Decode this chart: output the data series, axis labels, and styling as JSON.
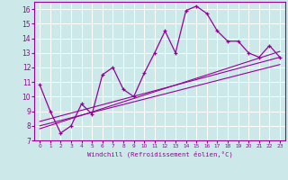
{
  "xlabel": "Windchill (Refroidissement éolien,°C)",
  "bg_color": "#cce8e8",
  "grid_color": "#ffffff",
  "line_color": "#990099",
  "main_x": [
    0,
    1,
    2,
    3,
    4,
    5,
    6,
    7,
    8,
    9,
    10,
    11,
    12,
    13,
    14,
    15,
    16,
    17,
    18,
    19,
    20,
    21,
    22,
    23
  ],
  "main_y": [
    10.8,
    9.0,
    7.5,
    8.0,
    9.5,
    8.8,
    11.5,
    12.0,
    10.5,
    10.0,
    11.6,
    13.0,
    14.5,
    13.0,
    15.9,
    16.2,
    15.7,
    14.5,
    13.8,
    13.8,
    13.0,
    12.7,
    13.5,
    12.7
  ],
  "line1_x": [
    0,
    23
  ],
  "line1_y": [
    8.3,
    12.7
  ],
  "line2_x": [
    0,
    23
  ],
  "line2_y": [
    8.0,
    12.2
  ],
  "line3_x": [
    0,
    23
  ],
  "line3_y": [
    7.8,
    13.1
  ],
  "ylim": [
    7,
    16.5
  ],
  "xlim": [
    -0.5,
    23.5
  ],
  "yticks": [
    7,
    8,
    9,
    10,
    11,
    12,
    13,
    14,
    15,
    16
  ],
  "xticks": [
    0,
    1,
    2,
    3,
    4,
    5,
    6,
    7,
    8,
    9,
    10,
    11,
    12,
    13,
    14,
    15,
    16,
    17,
    18,
    19,
    20,
    21,
    22,
    23
  ]
}
